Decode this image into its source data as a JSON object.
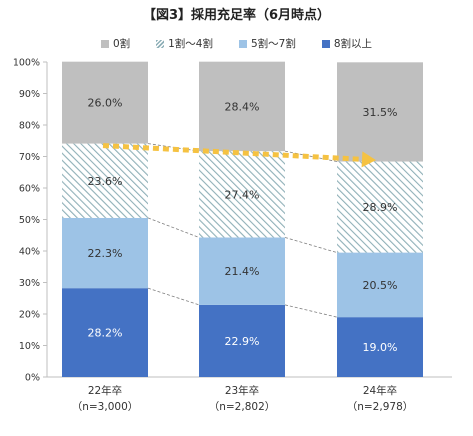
{
  "title": "【図3】採用充足率（6月時点）",
  "colors": {
    "zero": "#bfbfbf",
    "one_to_four_hatch": "#8fb0b8",
    "five_to_seven": "#9dc3e6",
    "eight_plus": "#4472c4",
    "arrow": "#f5c242"
  },
  "chart_data": {
    "type": "bar",
    "stacked": true,
    "percent": true,
    "title": "【図3】採用充足率（6月時点）",
    "categories": [
      "22年卒",
      "23年卒",
      "24年卒"
    ],
    "category_sublabels": [
      "（n=3,000）",
      "（n=2,802）",
      "（n=2,978）"
    ],
    "series": [
      {
        "name": "8割以上",
        "values": [
          28.2,
          22.9,
          19.0
        ],
        "labels": [
          "28.2%",
          "22.9%",
          "19.0%"
        ]
      },
      {
        "name": "5割～7割",
        "values": [
          22.3,
          21.4,
          20.5
        ],
        "labels": [
          "22.3%",
          "21.4%",
          "20.5%"
        ]
      },
      {
        "name": "1割～4割",
        "values": [
          23.6,
          27.4,
          28.9
        ],
        "labels": [
          "23.6%",
          "27.4%",
          "28.9%"
        ]
      },
      {
        "name": "0割",
        "values": [
          26.0,
          28.4,
          31.5
        ],
        "labels": [
          "26.0%",
          "28.4%",
          "31.5%"
        ]
      }
    ],
    "legend_order": [
      "0割",
      "1割～4割",
      "5割～7割",
      "8割以上"
    ],
    "legend_position": "top",
    "ylim": [
      0,
      100
    ],
    "yticks": [
      0,
      10,
      20,
      30,
      40,
      50,
      60,
      70,
      80,
      90,
      100
    ],
    "ytick_labels": [
      "0%",
      "10%",
      "20%",
      "30%",
      "40%",
      "50%",
      "60%",
      "70%",
      "80%",
      "90%",
      "100%"
    ],
    "grid": false,
    "trend_arrow": {
      "series": "1割～4割",
      "position": "top of series"
    },
    "connector_lines": true
  }
}
